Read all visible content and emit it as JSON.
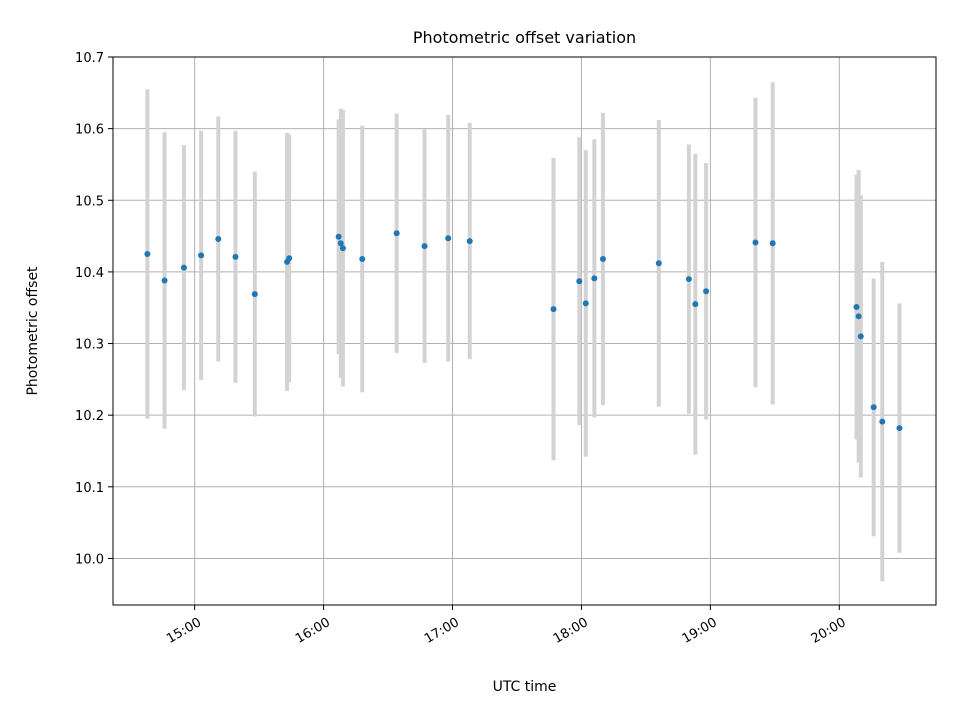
{
  "chart_data": {
    "type": "scatter",
    "title": "Photometric offset variation",
    "xlabel": "UTC time",
    "ylabel": "Photometric offset",
    "xlim": [
      "14:22",
      "20:45"
    ],
    "ylim": [
      9.935,
      10.7
    ],
    "grid": true,
    "x_ticks": [
      "15:00",
      "16:00",
      "17:00",
      "18:00",
      "19:00",
      "20:00"
    ],
    "y_ticks": [
      10.0,
      10.1,
      10.2,
      10.3,
      10.4,
      10.5,
      10.6,
      10.7
    ],
    "marker_color": "#1f77b4",
    "errorbar_color": "#d3d3d3",
    "points": [
      {
        "t": "14:38",
        "y": 10.425,
        "err": 0.23
      },
      {
        "t": "14:46",
        "y": 10.388,
        "err": 0.207
      },
      {
        "t": "14:55",
        "y": 10.406,
        "err": 0.171
      },
      {
        "t": "15:03",
        "y": 10.423,
        "err": 0.174
      },
      {
        "t": "15:11",
        "y": 10.446,
        "err": 0.171
      },
      {
        "t": "15:19",
        "y": 10.421,
        "err": 0.176
      },
      {
        "t": "15:28",
        "y": 10.369,
        "err": 0.171
      },
      {
        "t": "15:43",
        "y": 10.414,
        "err": 0.18
      },
      {
        "t": "15:44",
        "y": 10.419,
        "err": 0.173
      },
      {
        "t": "16:07",
        "y": 10.449,
        "err": 0.164
      },
      {
        "t": "16:08",
        "y": 10.44,
        "err": 0.188
      },
      {
        "t": "16:09",
        "y": 10.433,
        "err": 0.193
      },
      {
        "t": "16:18",
        "y": 10.418,
        "err": 0.186
      },
      {
        "t": "16:34",
        "y": 10.454,
        "err": 0.167
      },
      {
        "t": "16:47",
        "y": 10.436,
        "err": 0.163
      },
      {
        "t": "16:58",
        "y": 10.447,
        "err": 0.172
      },
      {
        "t": "17:08",
        "y": 10.443,
        "err": 0.165
      },
      {
        "t": "17:47",
        "y": 10.348,
        "err": 0.211
      },
      {
        "t": "17:59",
        "y": 10.387,
        "err": 0.201
      },
      {
        "t": "18:02",
        "y": 10.356,
        "err": 0.214
      },
      {
        "t": "18:06",
        "y": 10.391,
        "err": 0.194
      },
      {
        "t": "18:10",
        "y": 10.418,
        "err": 0.204
      },
      {
        "t": "18:36",
        "y": 10.412,
        "err": 0.2
      },
      {
        "t": "18:50",
        "y": 10.39,
        "err": 0.188
      },
      {
        "t": "18:53",
        "y": 10.355,
        "err": 0.21
      },
      {
        "t": "18:58",
        "y": 10.373,
        "err": 0.179
      },
      {
        "t": "19:21",
        "y": 10.441,
        "err": 0.202
      },
      {
        "t": "19:29",
        "y": 10.44,
        "err": 0.225
      },
      {
        "t": "20:08",
        "y": 10.351,
        "err": 0.185
      },
      {
        "t": "20:09",
        "y": 10.338,
        "err": 0.204
      },
      {
        "t": "20:10",
        "y": 10.31,
        "err": 0.197
      },
      {
        "t": "20:16",
        "y": 10.211,
        "err": 0.18
      },
      {
        "t": "20:20",
        "y": 10.191,
        "err": 0.223
      },
      {
        "t": "20:28",
        "y": 10.182,
        "err": 0.174
      }
    ]
  }
}
